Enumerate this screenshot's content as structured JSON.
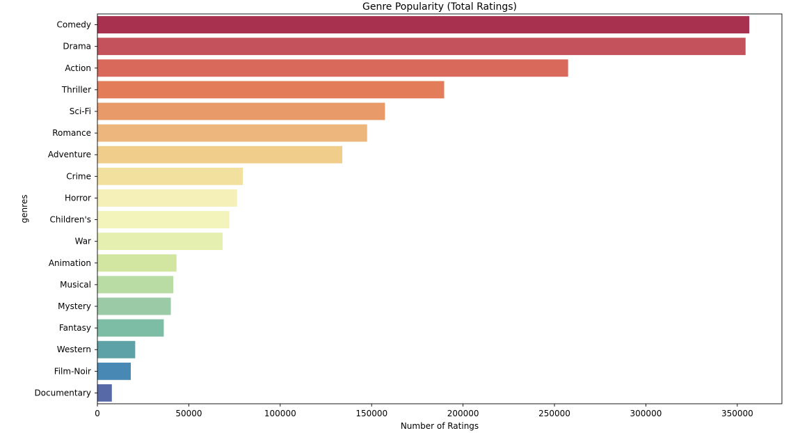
{
  "chart_data": {
    "type": "bar",
    "orientation": "horizontal",
    "title": "Genre Popularity (Total Ratings)",
    "xlabel": "Number of Ratings",
    "ylabel": "genres",
    "categories": [
      "Comedy",
      "Drama",
      "Action",
      "Thriller",
      "Sci-Fi",
      "Romance",
      "Adventure",
      "Crime",
      "Horror",
      "Children's",
      "War",
      "Animation",
      "Musical",
      "Mystery",
      "Fantasy",
      "Western",
      "Film-Noir",
      "Documentary"
    ],
    "values": [
      356580,
      354529,
      257457,
      189680,
      157294,
      147523,
      133953,
      79541,
      76386,
      72186,
      68527,
      43293,
      41533,
      40178,
      36301,
      20683,
      18261,
      7910
    ],
    "colors": [
      "#a8314f",
      "#c4525c",
      "#d96a5b",
      "#e27c59",
      "#e89a69",
      "#ecb67c",
      "#f0cd8a",
      "#f1e09e",
      "#f5efb8",
      "#f2f4bc",
      "#e5efaf",
      "#d2e6a1",
      "#b8dca3",
      "#9bcba6",
      "#7dbca5",
      "#5da2a6",
      "#4789b4",
      "#5869a8"
    ],
    "xlim": [
      0,
      374409
    ],
    "xticks": [
      0,
      50000,
      100000,
      150000,
      200000,
      250000,
      300000,
      350000
    ],
    "grid": false,
    "legend": "none"
  }
}
